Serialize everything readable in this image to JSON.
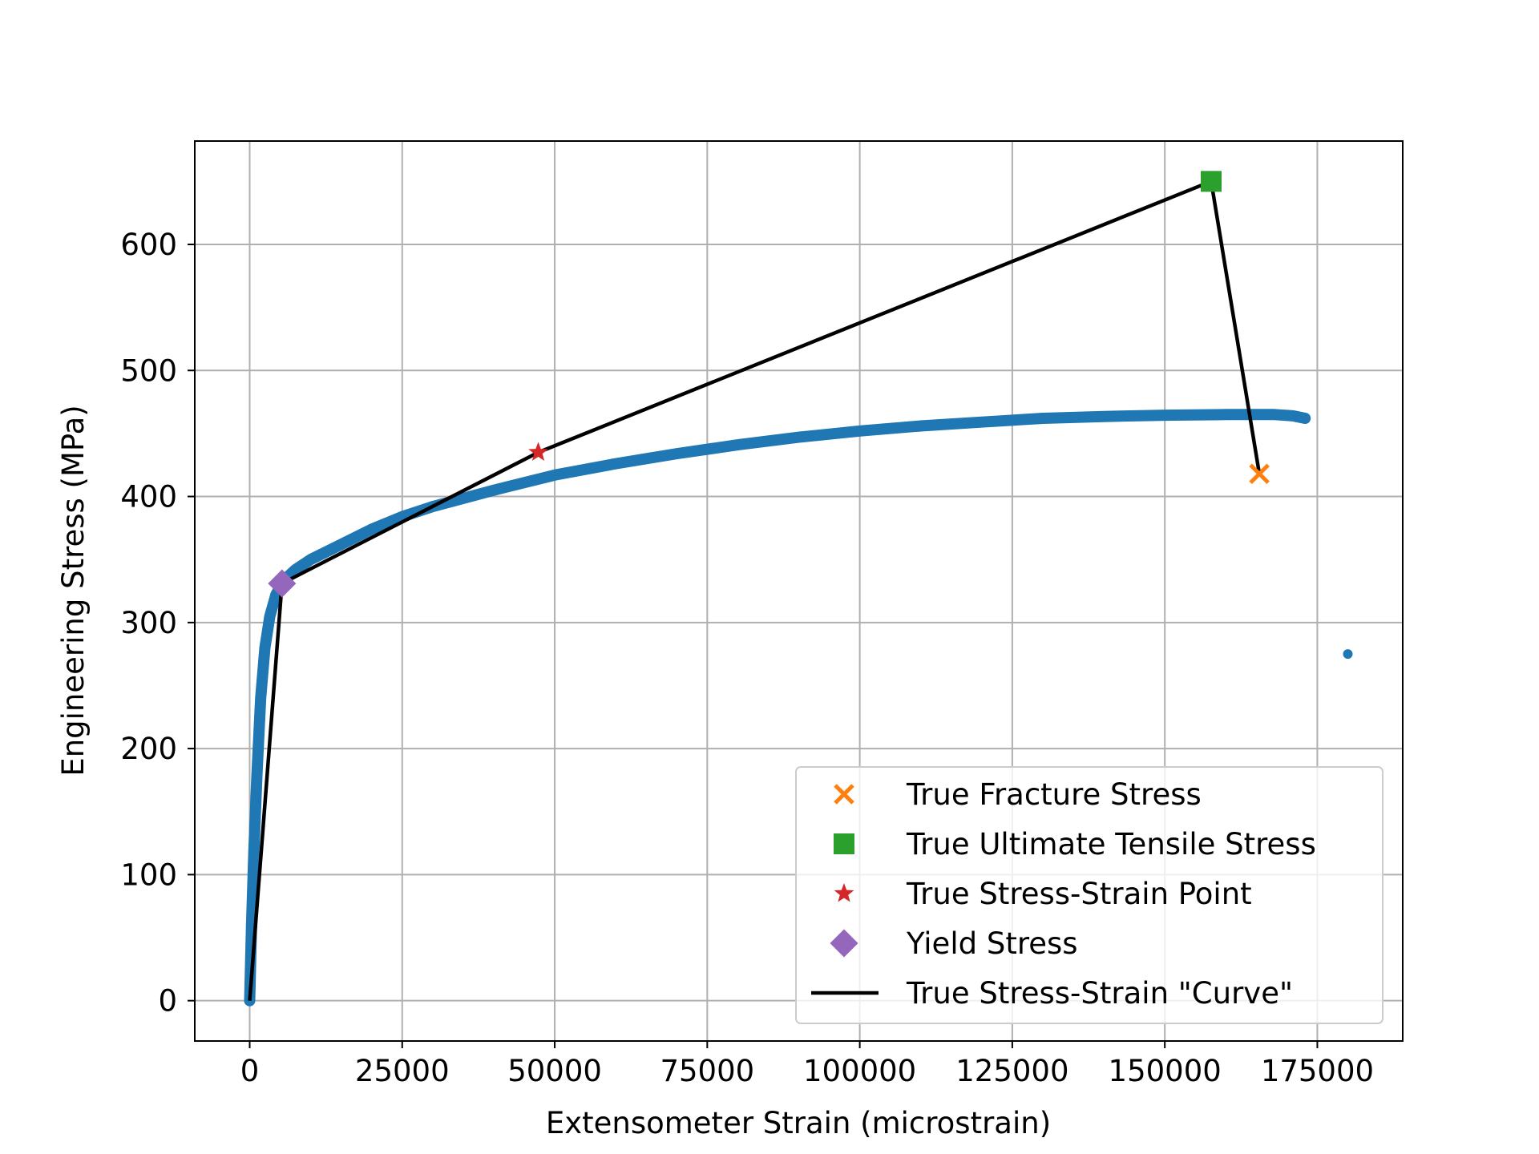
{
  "chart_data": {
    "type": "scatter",
    "title": "",
    "xlabel": "Extensometer Strain (microstrain)",
    "ylabel": "Engineering Stress (MPa)",
    "xlim": [
      -9000,
      189000
    ],
    "ylim": [
      -32,
      682
    ],
    "xticks": [
      0,
      25000,
      50000,
      75000,
      100000,
      125000,
      150000,
      175000
    ],
    "yticks": [
      0,
      100,
      200,
      300,
      400,
      500,
      600
    ],
    "grid": true,
    "legend_position": "lower right",
    "measured_curve": {
      "color": "#1f77b4",
      "points": [
        [
          0,
          0
        ],
        [
          300,
          60
        ],
        [
          700,
          120
        ],
        [
          1200,
          180
        ],
        [
          1800,
          240
        ],
        [
          2500,
          280
        ],
        [
          3300,
          305
        ],
        [
          4300,
          322
        ],
        [
          5500,
          333
        ],
        [
          7500,
          342
        ],
        [
          10000,
          350
        ],
        [
          15000,
          362
        ],
        [
          20000,
          374
        ],
        [
          25000,
          384
        ],
        [
          30000,
          392
        ],
        [
          40000,
          405
        ],
        [
          50000,
          417
        ],
        [
          60000,
          426
        ],
        [
          70000,
          434
        ],
        [
          80000,
          441
        ],
        [
          90000,
          447
        ],
        [
          100000,
          452
        ],
        [
          110000,
          456
        ],
        [
          120000,
          459
        ],
        [
          130000,
          462
        ],
        [
          140000,
          463.5
        ],
        [
          150000,
          464.5
        ],
        [
          160000,
          465
        ],
        [
          168000,
          465
        ],
        [
          171000,
          464
        ],
        [
          173000,
          462
        ]
      ],
      "outlier": [
        180000,
        275
      ]
    },
    "series": [
      {
        "name": "True Fracture Stress",
        "marker": "x",
        "color": "#ff7f0e",
        "points": [
          [
            165500,
            418
          ]
        ]
      },
      {
        "name": "True Ultimate Tensile Stress",
        "marker": "square",
        "color": "#2ca02c",
        "points": [
          [
            157600,
            650
          ]
        ]
      },
      {
        "name": "True Stress-Strain Point",
        "marker": "star",
        "color": "#d62728",
        "points": [
          [
            47300,
            435
          ]
        ]
      },
      {
        "name": "Yield Stress",
        "marker": "diamond",
        "color": "#9467bd",
        "points": [
          [
            5300,
            331
          ]
        ]
      },
      {
        "name": "True Stress-Strain \"Curve\"",
        "marker": "line",
        "color": "#000000",
        "points": [
          [
            0,
            0
          ],
          [
            5300,
            331
          ],
          [
            47300,
            435
          ],
          [
            157600,
            650
          ],
          [
            165500,
            418
          ]
        ]
      }
    ]
  }
}
